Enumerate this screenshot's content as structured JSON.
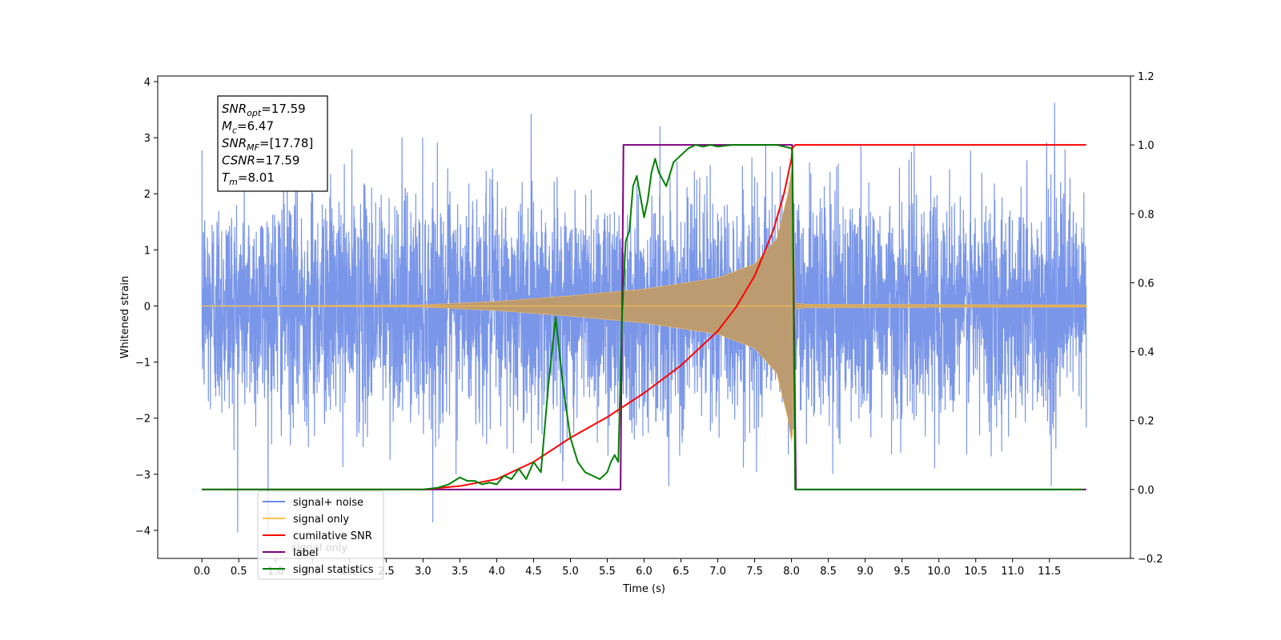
{
  "chart_data": {
    "type": "line",
    "xlabel": "Time (s)",
    "ylabel_left": "Whitened strain",
    "xlim": [
      -0.6,
      12.6
    ],
    "ylim_left": [
      -4.5,
      4.1
    ],
    "ylim_right": [
      -0.2,
      1.2
    ],
    "x_ticks": [
      0.0,
      0.5,
      1.0,
      1.5,
      2.0,
      2.5,
      3.0,
      3.5,
      4.0,
      4.5,
      5.0,
      5.5,
      6.0,
      6.5,
      7.0,
      7.5,
      8.0,
      8.5,
      9.0,
      9.5,
      10.0,
      10.5,
      11.0,
      11.5
    ],
    "x_tick_labels": [
      "0.0",
      "0.5",
      "1.0",
      "1.5",
      "2.0",
      "2.5",
      "3.0",
      "3.5",
      "4.0",
      "4.5",
      "5.0",
      "5.5",
      "6.0",
      "6.5",
      "7.0",
      "7.5",
      "8.0",
      "8.5",
      "9.0",
      "9.5",
      "10.0",
      "10.5",
      "11.0",
      "11.5"
    ],
    "y_ticks_left": [
      -4,
      -3,
      -2,
      -1,
      0,
      1,
      2,
      3,
      4
    ],
    "y_tick_labels_left": [
      "−4",
      "−3",
      "−2",
      "−1",
      "0",
      "1",
      "2",
      "3",
      "4"
    ],
    "y_ticks_right": [
      -0.2,
      0.0,
      0.2,
      0.4,
      0.6,
      0.8,
      1.0,
      1.2
    ],
    "y_tick_labels_right": [
      "−0.2",
      "0.0",
      "0.2",
      "0.4",
      "0.6",
      "0.8",
      "1.0",
      "1.2"
    ],
    "grid": false,
    "legend_position": "lower-left",
    "legend_entries": [
      {
        "name": "signal+ noise",
        "color": "#6b8be6"
      },
      {
        "name": "signal only",
        "color": "#ffc04d"
      },
      {
        "name": "cumilative SNR",
        "color": "#ff0000"
      },
      {
        "name": "label",
        "color": "#800080"
      },
      {
        "name": "signal statistics",
        "color": "#008000"
      }
    ],
    "legend_ghost_text": "signal only",
    "annotation": {
      "lines": [
        {
          "base": "SNR",
          "sub": "opt",
          "rest": "=17.59"
        },
        {
          "base": "M",
          "sub": "c",
          "rest": "=6.47"
        },
        {
          "base": "SNR",
          "sub": "MF",
          "rest": "=[17.78]"
        },
        {
          "base": "CSNR",
          "sub": "",
          "rest": "=17.59"
        },
        {
          "base": "T",
          "sub": "m",
          "rest": "=8.01"
        }
      ]
    },
    "series": [
      {
        "name": "signal+ noise",
        "axis": "left",
        "color": "#6b8be6",
        "x_range": [
          0.0,
          12.0
        ],
        "noise_std": 1.0,
        "y_range_approx": [
          -4.1,
          3.7
        ]
      },
      {
        "name": "signal only",
        "axis": "left",
        "color": "#ffc04d",
        "x_range": [
          0.0,
          12.0
        ],
        "merger_time": 8.01,
        "envelope": [
          [
            0.0,
            0.0
          ],
          [
            3.0,
            0.02
          ],
          [
            4.0,
            0.08
          ],
          [
            5.0,
            0.18
          ],
          [
            6.0,
            0.3
          ],
          [
            7.0,
            0.5
          ],
          [
            7.5,
            0.75
          ],
          [
            7.8,
            1.2
          ],
          [
            7.95,
            2.0
          ],
          [
            8.01,
            2.5
          ],
          [
            8.05,
            0.05
          ],
          [
            8.2,
            0.03
          ],
          [
            12.0,
            0.02
          ]
        ]
      },
      {
        "name": "cumilative SNR",
        "axis": "right",
        "color": "#ff0000",
        "x": [
          0.0,
          1.0,
          2.0,
          3.0,
          3.5,
          4.0,
          4.5,
          5.0,
          5.5,
          6.0,
          6.5,
          7.0,
          7.25,
          7.5,
          7.75,
          7.9,
          8.0,
          8.01,
          8.05,
          12.0
        ],
        "y": [
          0.0,
          0.0,
          0.0,
          0.0,
          0.01,
          0.03,
          0.08,
          0.15,
          0.21,
          0.28,
          0.36,
          0.46,
          0.53,
          0.62,
          0.75,
          0.86,
          0.96,
          0.99,
          1.0,
          1.0
        ]
      },
      {
        "name": "label",
        "axis": "right",
        "color": "#800080",
        "x": [
          0.0,
          5.68,
          5.72,
          8.01,
          8.06,
          12.0
        ],
        "y": [
          0.0,
          0.0,
          1.0,
          1.0,
          0.0,
          0.0
        ]
      },
      {
        "name": "signal statistics",
        "axis": "right",
        "color": "#008000",
        "x": [
          0.0,
          1.0,
          2.0,
          3.0,
          3.2,
          3.35,
          3.5,
          3.6,
          3.7,
          3.8,
          3.9,
          4.0,
          4.1,
          4.2,
          4.3,
          4.4,
          4.5,
          4.6,
          4.7,
          4.8,
          4.9,
          5.0,
          5.1,
          5.2,
          5.3,
          5.4,
          5.5,
          5.55,
          5.6,
          5.65,
          5.7,
          5.75,
          5.8,
          5.85,
          5.9,
          5.95,
          6.0,
          6.05,
          6.1,
          6.15,
          6.2,
          6.3,
          6.4,
          6.5,
          6.6,
          6.7,
          6.8,
          6.9,
          7.0,
          7.2,
          7.5,
          7.8,
          8.0,
          8.01,
          8.05,
          8.1,
          8.2,
          9.0,
          10.0,
          11.0,
          11.95
        ],
        "y": [
          0.0,
          0.0,
          0.0,
          0.0,
          0.005,
          0.015,
          0.035,
          0.025,
          0.025,
          0.015,
          0.02,
          0.015,
          0.04,
          0.03,
          0.06,
          0.03,
          0.08,
          0.05,
          0.3,
          0.5,
          0.3,
          0.15,
          0.08,
          0.05,
          0.04,
          0.03,
          0.05,
          0.08,
          0.1,
          0.08,
          0.5,
          0.72,
          0.75,
          0.88,
          0.91,
          0.85,
          0.79,
          0.84,
          0.92,
          0.96,
          0.92,
          0.88,
          0.95,
          0.97,
          0.99,
          1.0,
          0.995,
          1.0,
          0.995,
          1.0,
          1.0,
          1.0,
          0.99,
          0.98,
          0.0,
          0.0,
          0.0,
          0.0,
          0.0,
          0.0,
          0.0
        ]
      }
    ]
  }
}
